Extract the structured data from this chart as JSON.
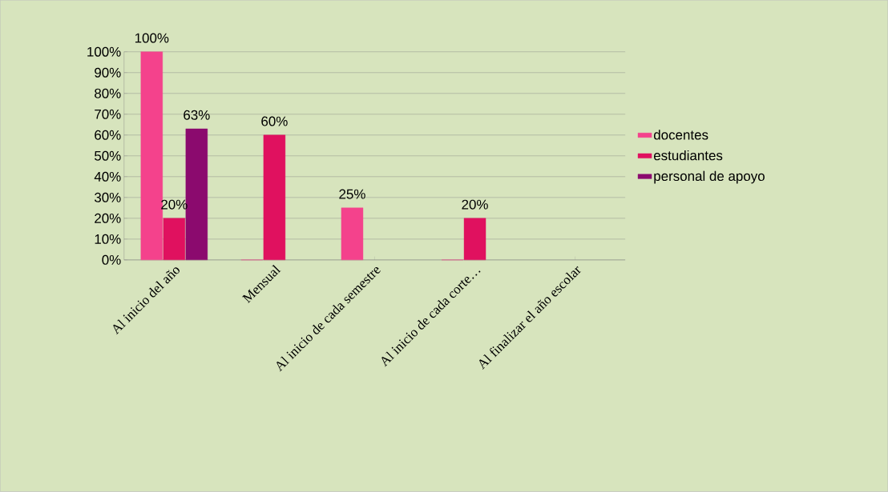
{
  "chart_data": {
    "type": "bar",
    "categories": [
      "Al inicio del año",
      "Mensual",
      "Al inicio de cada semestre",
      "Al inicio  de cada corte…",
      "Al finalizar el año escolar"
    ],
    "series": [
      {
        "name": "docentes",
        "color": "#f4428c",
        "values": [
          100,
          0,
          25,
          0,
          null
        ],
        "value_labels": [
          "100%",
          null,
          "25%",
          null,
          null
        ]
      },
      {
        "name": "estudiantes",
        "color": "#e0115f",
        "values": [
          20,
          60,
          null,
          20,
          null
        ],
        "value_labels": [
          "20%",
          "60%",
          null,
          "20%",
          null
        ]
      },
      {
        "name": "personal de apoyo",
        "color": "#8b0a6e",
        "values": [
          63,
          null,
          null,
          null,
          null
        ],
        "value_labels": [
          "63%",
          null,
          null,
          null,
          null
        ]
      }
    ],
    "ylim": [
      0,
      100
    ],
    "yticks": [
      {
        "value": 0,
        "label": "0%"
      },
      {
        "value": 10,
        "label": "10%"
      },
      {
        "value": 20,
        "label": "20%"
      },
      {
        "value": 30,
        "label": "30%"
      },
      {
        "value": 40,
        "label": "40%"
      },
      {
        "value": 50,
        "label": "50%"
      },
      {
        "value": 60,
        "label": "60%"
      },
      {
        "value": 70,
        "label": "70%"
      },
      {
        "value": 80,
        "label": "80%"
      },
      {
        "value": 90,
        "label": "90%"
      },
      {
        "value": 100,
        "label": "100%"
      }
    ],
    "grid": "y",
    "legend": "right"
  }
}
